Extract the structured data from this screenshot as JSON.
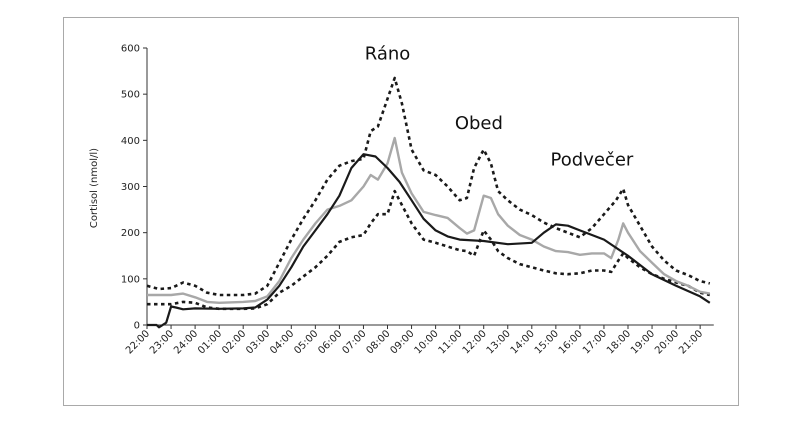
{
  "chart_data": {
    "type": "line",
    "ylabel": "Cortisol (nmol/l)",
    "ylim": [
      0,
      600
    ],
    "yticks": [
      "0",
      "100",
      "200",
      "300",
      "400",
      "500",
      "600"
    ],
    "categories": [
      "22:00",
      "23:00",
      "24:00",
      "01:00",
      "02:00",
      "03:00",
      "04:00",
      "05:00",
      "06:00",
      "07:00",
      "08:00",
      "09:00",
      "10:00",
      "11:00",
      "12:00",
      "13:00",
      "14:00",
      "15:00",
      "16:00",
      "17:00",
      "18:00",
      "19:00",
      "20:00",
      "21:00"
    ],
    "x_end": 23.4,
    "annotations": [
      {
        "text": "Ráno",
        "x": 10.0,
        "y": 575
      },
      {
        "text": "Obed",
        "x": 13.8,
        "y": 425
      },
      {
        "text": "Podvečer",
        "x": 18.5,
        "y": 345
      }
    ],
    "series": [
      {
        "style": "solid-black",
        "points": [
          [
            0,
            0
          ],
          [
            0.4,
            0
          ],
          [
            0.5,
            -5
          ],
          [
            0.8,
            5
          ],
          [
            1.0,
            40
          ],
          [
            1.2,
            38
          ],
          [
            1.5,
            34
          ],
          [
            2,
            36
          ],
          [
            3,
            35
          ],
          [
            4,
            36
          ],
          [
            4.5,
            38
          ],
          [
            5,
            55
          ],
          [
            5.5,
            85
          ],
          [
            6,
            125
          ],
          [
            6.5,
            170
          ],
          [
            7,
            205
          ],
          [
            7.5,
            240
          ],
          [
            8,
            280
          ],
          [
            8.5,
            340
          ],
          [
            9,
            370
          ],
          [
            9.5,
            365
          ],
          [
            10,
            340
          ],
          [
            10.5,
            310
          ],
          [
            11,
            270
          ],
          [
            11.5,
            230
          ],
          [
            12,
            205
          ],
          [
            12.5,
            192
          ],
          [
            13,
            185
          ],
          [
            14,
            182
          ],
          [
            15,
            175
          ],
          [
            16,
            178
          ],
          [
            16.5,
            200
          ],
          [
            17,
            218
          ],
          [
            17.5,
            215
          ],
          [
            18,
            205
          ],
          [
            19,
            185
          ],
          [
            20,
            150
          ],
          [
            21,
            110
          ],
          [
            22,
            85
          ],
          [
            23,
            62
          ],
          [
            23.4,
            48
          ]
        ]
      },
      {
        "style": "solid-grey",
        "points": [
          [
            0,
            65
          ],
          [
            1,
            65
          ],
          [
            1.5,
            68
          ],
          [
            2,
            60
          ],
          [
            2.5,
            50
          ],
          [
            3,
            48
          ],
          [
            4,
            50
          ],
          [
            4.5,
            52
          ],
          [
            5,
            62
          ],
          [
            5.5,
            95
          ],
          [
            6,
            145
          ],
          [
            6.5,
            185
          ],
          [
            7,
            220
          ],
          [
            7.5,
            250
          ],
          [
            8,
            258
          ],
          [
            8.5,
            270
          ],
          [
            9,
            300
          ],
          [
            9.3,
            325
          ],
          [
            9.6,
            315
          ],
          [
            10,
            350
          ],
          [
            10.3,
            405
          ],
          [
            10.6,
            330
          ],
          [
            11,
            285
          ],
          [
            11.5,
            245
          ],
          [
            12,
            238
          ],
          [
            12.5,
            232
          ],
          [
            13,
            210
          ],
          [
            13.3,
            198
          ],
          [
            13.6,
            205
          ],
          [
            14,
            280
          ],
          [
            14.3,
            275
          ],
          [
            14.6,
            240
          ],
          [
            15,
            215
          ],
          [
            15.5,
            195
          ],
          [
            16,
            185
          ],
          [
            16.5,
            170
          ],
          [
            17,
            160
          ],
          [
            17.5,
            158
          ],
          [
            18,
            152
          ],
          [
            18.5,
            155
          ],
          [
            19,
            155
          ],
          [
            19.3,
            145
          ],
          [
            19.6,
            185
          ],
          [
            19.8,
            220
          ],
          [
            20,
            200
          ],
          [
            20.5,
            160
          ],
          [
            21,
            135
          ],
          [
            21.5,
            110
          ],
          [
            22,
            95
          ],
          [
            22.5,
            85
          ],
          [
            23,
            72
          ],
          [
            23.4,
            68
          ]
        ]
      },
      {
        "style": "dotted-upper",
        "points": [
          [
            0,
            85
          ],
          [
            0.5,
            78
          ],
          [
            1,
            80
          ],
          [
            1.5,
            92
          ],
          [
            2,
            85
          ],
          [
            2.5,
            70
          ],
          [
            3,
            65
          ],
          [
            4,
            65
          ],
          [
            4.5,
            68
          ],
          [
            5,
            85
          ],
          [
            5.5,
            135
          ],
          [
            6,
            185
          ],
          [
            6.5,
            230
          ],
          [
            7,
            270
          ],
          [
            7.5,
            315
          ],
          [
            8,
            345
          ],
          [
            8.5,
            355
          ],
          [
            9,
            360
          ],
          [
            9.3,
            420
          ],
          [
            9.6,
            430
          ],
          [
            10,
            490
          ],
          [
            10.3,
            535
          ],
          [
            10.6,
            480
          ],
          [
            11,
            380
          ],
          [
            11.5,
            335
          ],
          [
            12,
            325
          ],
          [
            12.5,
            300
          ],
          [
            13,
            270
          ],
          [
            13.3,
            275
          ],
          [
            13.6,
            340
          ],
          [
            14,
            380
          ],
          [
            14.3,
            350
          ],
          [
            14.6,
            290
          ],
          [
            15,
            270
          ],
          [
            15.5,
            250
          ],
          [
            16,
            238
          ],
          [
            16.5,
            222
          ],
          [
            17,
            210
          ],
          [
            17.5,
            200
          ],
          [
            18,
            190
          ],
          [
            18.5,
            210
          ],
          [
            19,
            240
          ],
          [
            19.5,
            270
          ],
          [
            19.8,
            295
          ],
          [
            20,
            260
          ],
          [
            20.5,
            215
          ],
          [
            21,
            170
          ],
          [
            21.5,
            140
          ],
          [
            22,
            118
          ],
          [
            22.5,
            108
          ],
          [
            23,
            95
          ],
          [
            23.4,
            90
          ]
        ]
      },
      {
        "style": "dotted-lower",
        "points": [
          [
            0,
            45
          ],
          [
            0.5,
            45
          ],
          [
            1,
            45
          ],
          [
            1.5,
            50
          ],
          [
            2,
            48
          ],
          [
            2.5,
            38
          ],
          [
            3,
            35
          ],
          [
            4,
            35
          ],
          [
            4.5,
            36
          ],
          [
            5,
            45
          ],
          [
            5.5,
            70
          ],
          [
            6,
            85
          ],
          [
            6.5,
            105
          ],
          [
            7,
            125
          ],
          [
            7.5,
            150
          ],
          [
            8,
            180
          ],
          [
            8.5,
            190
          ],
          [
            9,
            195
          ],
          [
            9.3,
            220
          ],
          [
            9.6,
            240
          ],
          [
            10,
            240
          ],
          [
            10.3,
            290
          ],
          [
            10.6,
            260
          ],
          [
            11,
            220
          ],
          [
            11.5,
            185
          ],
          [
            12,
            178
          ],
          [
            12.5,
            170
          ],
          [
            13,
            162
          ],
          [
            13.3,
            160
          ],
          [
            13.6,
            150
          ],
          [
            14,
            205
          ],
          [
            14.3,
            185
          ],
          [
            14.6,
            160
          ],
          [
            15,
            145
          ],
          [
            15.5,
            132
          ],
          [
            16,
            125
          ],
          [
            16.5,
            118
          ],
          [
            17,
            112
          ],
          [
            17.5,
            110
          ],
          [
            18,
            112
          ],
          [
            18.5,
            118
          ],
          [
            19,
            118
          ],
          [
            19.3,
            115
          ],
          [
            19.6,
            140
          ],
          [
            19.8,
            155
          ],
          [
            20,
            145
          ],
          [
            20.5,
            125
          ],
          [
            21,
            110
          ],
          [
            21.5,
            100
          ],
          [
            22,
            92
          ],
          [
            22.5,
            85
          ],
          [
            23,
            70
          ],
          [
            23.4,
            65
          ]
        ]
      }
    ]
  }
}
